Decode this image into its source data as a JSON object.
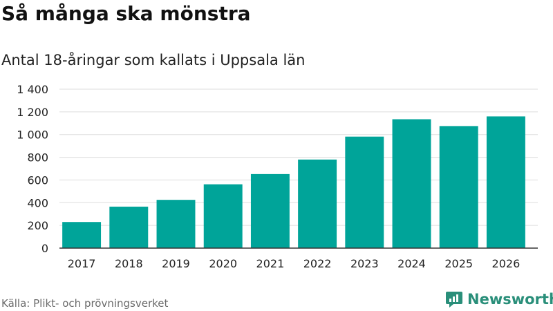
{
  "title": "Så många ska mönstra",
  "subtitle": "Antal 18-åringar som kallats i Uppsala län",
  "source": "Källa: Plikt- och prövningsverket",
  "brand": {
    "name": "Newsworthy",
    "icon": "newsworthy-logo-icon",
    "color": "#2a8f7a"
  },
  "colors": {
    "bar": "#00a499",
    "grid": "#dddddd",
    "axis": "#333333",
    "text": "#111111"
  },
  "chart_data": {
    "type": "bar",
    "title": "Så många ska mönstra",
    "subtitle": "Antal 18-åringar som kallats i Uppsala län",
    "categories": [
      "2017",
      "2018",
      "2019",
      "2020",
      "2021",
      "2022",
      "2023",
      "2024",
      "2025",
      "2026"
    ],
    "values": [
      230,
      365,
      425,
      562,
      652,
      780,
      982,
      1135,
      1075,
      1160
    ],
    "yticks": [
      0,
      200,
      400,
      600,
      800,
      1000,
      1200,
      1400
    ],
    "ytick_labels": [
      "0",
      "200",
      "400",
      "600",
      "800",
      "1 000",
      "1 200",
      "1 400"
    ],
    "ylim": [
      0,
      1400
    ],
    "xlabel": "",
    "ylabel": "",
    "grid": true,
    "legend": "none"
  }
}
